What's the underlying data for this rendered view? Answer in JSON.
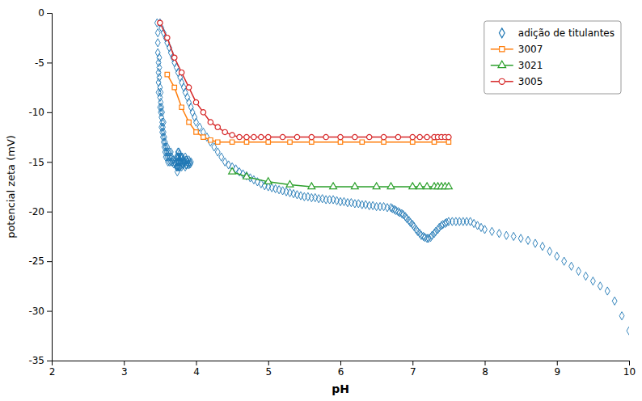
{
  "chart_data": {
    "type": "scatter",
    "x_label": "pH",
    "y_label": "potencial zeta (mV)",
    "xlim": [
      2,
      10
    ],
    "ylim": [
      -35,
      0
    ],
    "xticks": [
      2,
      3,
      4,
      5,
      6,
      7,
      8,
      9,
      10
    ],
    "yticks": [
      0,
      -5,
      -10,
      -15,
      -20,
      -25,
      -30,
      -35
    ],
    "grid": false,
    "legend": "upper right",
    "series": [
      {
        "name": "adição de titulantes",
        "type": "scatter",
        "marker": "diamond",
        "x": [
          3.46,
          3.47,
          3.47,
          3.47,
          3.48,
          3.48,
          3.48,
          3.48,
          3.49,
          3.49,
          3.49,
          3.5,
          3.5,
          3.5,
          3.51,
          3.51,
          3.51,
          3.52,
          3.52,
          3.52,
          3.53,
          3.53,
          3.53,
          3.54,
          3.54,
          3.55,
          3.55,
          3.55,
          3.56,
          3.56,
          3.57,
          3.57,
          3.58,
          3.58,
          3.59,
          3.6,
          3.6,
          3.61,
          3.61,
          3.62,
          3.63,
          3.63,
          3.64,
          3.65,
          3.65,
          3.66,
          3.67,
          3.68,
          3.69,
          3.7,
          3.71,
          3.72,
          3.73,
          3.73,
          3.73,
          3.74,
          3.74,
          3.74,
          3.74,
          3.75,
          3.75,
          3.75,
          3.75,
          3.76,
          3.76,
          3.76,
          3.76,
          3.77,
          3.77,
          3.77,
          3.78,
          3.78,
          3.78,
          3.79,
          3.79,
          3.8,
          3.8,
          3.8,
          3.81,
          3.81,
          3.82,
          3.82,
          3.83,
          3.84,
          3.85,
          3.85,
          3.85,
          3.86,
          3.86,
          3.87,
          3.87,
          3.88,
          3.89,
          3.9,
          3.9,
          3.91,
          3.92,
          3.93,
          3.5,
          3.52,
          3.55,
          3.58,
          3.6,
          3.63,
          3.65,
          3.68,
          3.7,
          3.73,
          3.75,
          3.78,
          3.8,
          3.83,
          3.85,
          3.88,
          3.9,
          3.93,
          3.95,
          3.98,
          4.0,
          4.05,
          4.1,
          4.15,
          4.2,
          4.25,
          4.3,
          4.35,
          4.4,
          4.45,
          4.5,
          4.55,
          4.6,
          4.65,
          4.7,
          4.75,
          4.8,
          4.85,
          4.9,
          4.95,
          5.0,
          5.05,
          5.1,
          5.15,
          5.2,
          5.25,
          5.3,
          5.35,
          5.4,
          5.45,
          5.5,
          5.55,
          5.6,
          5.65,
          5.7,
          5.75,
          5.8,
          5.85,
          5.9,
          5.95,
          6.0,
          6.05,
          6.1,
          6.15,
          6.2,
          6.25,
          6.3,
          6.35,
          6.4,
          6.45,
          6.5,
          6.55,
          6.6,
          6.65,
          6.7,
          6.72,
          6.75,
          6.77,
          6.8,
          6.82,
          6.85,
          6.87,
          6.9,
          6.92,
          6.95,
          6.97,
          7.0,
          7.02,
          7.05,
          7.07,
          7.1,
          7.12,
          7.15,
          7.17,
          7.2,
          7.22,
          7.25,
          7.27,
          7.3,
          7.32,
          7.35,
          7.37,
          7.4,
          7.42,
          7.45,
          7.47,
          7.5,
          7.55,
          7.6,
          7.65,
          7.7,
          7.75,
          7.8,
          7.85,
          7.9,
          7.95,
          8.0,
          8.1,
          8.2,
          8.3,
          8.4,
          8.5,
          8.6,
          8.7,
          8.8,
          8.9,
          9.0,
          9.1,
          9.2,
          9.3,
          9.4,
          9.5,
          9.6,
          9.7,
          9.8,
          9.9,
          10.0
        ],
        "values": [
          -1.0,
          -2.0,
          -3.0,
          -4.0,
          -5.0,
          -6.0,
          -7.0,
          -8.0,
          -4.5,
          -5.5,
          -6.5,
          -7.5,
          -8.5,
          -9.5,
          -8.0,
          -9.0,
          -10.0,
          -9.5,
          -10.5,
          -11.5,
          -10.0,
          -11.0,
          -12.0,
          -11.5,
          -12.5,
          -11.0,
          -12.0,
          -13.0,
          -12.5,
          -13.5,
          -13.0,
          -14.0,
          -13.5,
          -14.5,
          -14.0,
          -13.5,
          -14.5,
          -14.0,
          -15.0,
          -14.5,
          -14.0,
          -15.0,
          -14.5,
          -14.0,
          -15.0,
          -14.5,
          -15.0,
          -14.8,
          -15.2,
          -15.0,
          -15.2,
          -15.0,
          -15.5,
          -14.5,
          -15.5,
          -14.5,
          -15.0,
          -15.5,
          -16.0,
          -14.0,
          -14.5,
          -15.0,
          -15.5,
          -14.0,
          -14.5,
          -15.0,
          -15.5,
          -14.2,
          -14.8,
          -15.5,
          -14.5,
          -15.0,
          -15.5,
          -14.5,
          -15.0,
          -14.5,
          -15.0,
          -15.5,
          -14.5,
          -15.2,
          -14.8,
          -15.3,
          -15.0,
          -15.0,
          -14.5,
          -15.0,
          -15.5,
          -14.8,
          -15.3,
          -14.8,
          -15.3,
          -15.0,
          -15.2,
          -14.8,
          -15.3,
          -15.0,
          -15.2,
          -15.0,
          -1.0,
          -1.5,
          -2.0,
          -2.5,
          -3.0,
          -3.5,
          -4.0,
          -4.5,
          -5.0,
          -5.5,
          -6.0,
          -6.5,
          -7.0,
          -7.5,
          -8.0,
          -8.5,
          -9.0,
          -9.5,
          -10.0,
          -10.5,
          -11.0,
          -11.5,
          -12.0,
          -12.5,
          -13.0,
          -13.5,
          -14.0,
          -14.5,
          -15.0,
          -15.3,
          -15.5,
          -15.7,
          -16.0,
          -16.2,
          -16.4,
          -16.6,
          -16.8,
          -17.0,
          -17.2,
          -17.4,
          -17.5,
          -17.6,
          -17.7,
          -17.8,
          -17.9,
          -18.0,
          -18.1,
          -18.2,
          -18.3,
          -18.4,
          -18.5,
          -18.5,
          -18.6,
          -18.6,
          -18.7,
          -18.7,
          -18.8,
          -18.8,
          -18.8,
          -18.9,
          -19.0,
          -19.0,
          -19.1,
          -19.1,
          -19.2,
          -19.2,
          -19.3,
          -19.3,
          -19.4,
          -19.4,
          -19.5,
          -19.5,
          -19.5,
          -19.6,
          -19.6,
          -19.7,
          -19.8,
          -19.9,
          -20.0,
          -20.1,
          -20.2,
          -20.3,
          -20.5,
          -20.7,
          -20.9,
          -21.1,
          -21.3,
          -21.5,
          -21.8,
          -22.0,
          -22.2,
          -22.4,
          -22.5,
          -22.6,
          -22.7,
          -22.7,
          -22.6,
          -22.4,
          -22.2,
          -22.0,
          -21.8,
          -21.6,
          -21.4,
          -21.3,
          -21.2,
          -21.1,
          -21.0,
          -21.0,
          -21.0,
          -21.0,
          -21.0,
          -21.0,
          -21.0,
          -21.2,
          -21.4,
          -21.6,
          -21.8,
          -22.0,
          -22.2,
          -22.4,
          -22.5,
          -22.7,
          -22.9,
          -23.2,
          -23.5,
          -24.0,
          -24.5,
          -25.0,
          -25.5,
          -26.0,
          -26.5,
          -27.0,
          -27.5,
          -28.0,
          -29.0,
          -30.5,
          -32.0
        ]
      },
      {
        "name": "3007",
        "type": "line",
        "marker": "square",
        "x": [
          3.6,
          3.7,
          3.8,
          3.9,
          4.0,
          4.1,
          4.2,
          4.3,
          4.5,
          4.7,
          5.0,
          5.3,
          5.6,
          6.0,
          6.3,
          6.6,
          7.0,
          7.3,
          7.5
        ],
        "values": [
          -6.2,
          -7.5,
          -9.5,
          -11.0,
          -12.0,
          -12.5,
          -12.8,
          -13.0,
          -13.0,
          -13.0,
          -13.0,
          -13.0,
          -13.0,
          -13.0,
          -13.0,
          -13.0,
          -13.0,
          -13.0,
          -13.0
        ]
      },
      {
        "name": "3021",
        "type": "line",
        "marker": "triangle",
        "x": [
          4.5,
          4.7,
          5.0,
          5.3,
          5.6,
          5.9,
          6.2,
          6.5,
          6.7,
          7.0,
          7.1,
          7.2,
          7.3,
          7.35,
          7.4,
          7.45,
          7.5
        ],
        "values": [
          -16.0,
          -16.5,
          -17.0,
          -17.3,
          -17.5,
          -17.5,
          -17.5,
          -17.5,
          -17.5,
          -17.5,
          -17.5,
          -17.5,
          -17.5,
          -17.5,
          -17.5,
          -17.5,
          -17.5
        ]
      },
      {
        "name": "3005",
        "type": "line",
        "marker": "circle",
        "x": [
          3.5,
          3.6,
          3.7,
          3.8,
          3.9,
          4.0,
          4.1,
          4.2,
          4.3,
          4.4,
          4.5,
          4.6,
          4.7,
          4.8,
          4.9,
          5.0,
          5.2,
          5.4,
          5.6,
          5.8,
          6.0,
          6.2,
          6.4,
          6.6,
          6.8,
          7.0,
          7.1,
          7.2,
          7.3,
          7.35,
          7.4,
          7.45,
          7.5
        ],
        "values": [
          -1.0,
          -2.5,
          -4.5,
          -6.0,
          -7.5,
          -9.0,
          -10.0,
          -11.0,
          -11.5,
          -12.0,
          -12.3,
          -12.5,
          -12.5,
          -12.5,
          -12.5,
          -12.5,
          -12.5,
          -12.5,
          -12.5,
          -12.5,
          -12.5,
          -12.5,
          -12.5,
          -12.5,
          -12.5,
          -12.5,
          -12.5,
          -12.5,
          -12.5,
          -12.5,
          -12.5,
          -12.5,
          -12.5
        ]
      }
    ]
  }
}
